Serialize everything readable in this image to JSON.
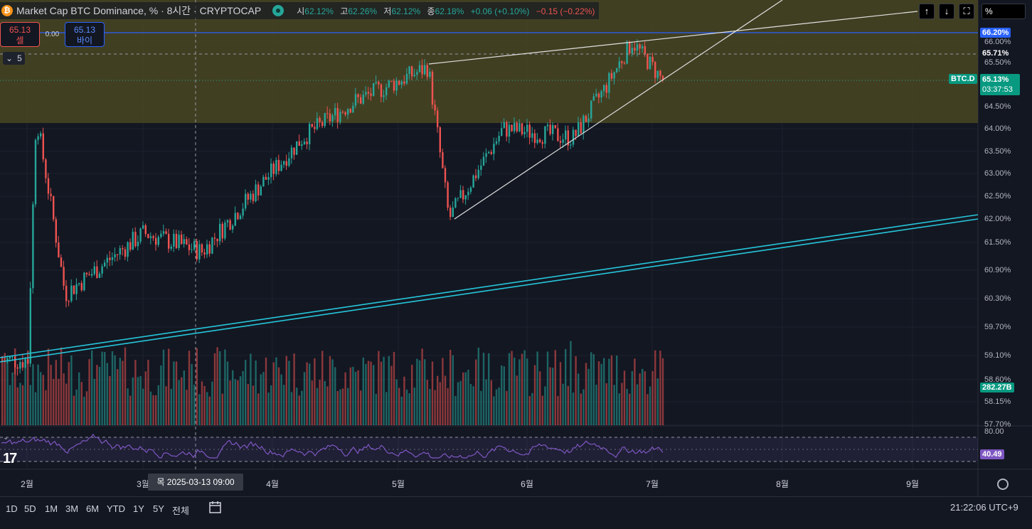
{
  "header": {
    "coin_icon": "bitcoin-icon",
    "coin_glyph": "₿",
    "title": "Market Cap BTC Dominance, % · 8시간 · CRYPTOCAP",
    "ohlc": {
      "o_label": "시",
      "o": "62.12%",
      "h_label": "고",
      "h": "62.26%",
      "l_label": "저",
      "l": "62.12%",
      "c_label": "종",
      "c": "62.18%",
      "change": "+0.06 (+0.10%)",
      "change2": "−0.15 (−0.22%)"
    }
  },
  "trade": {
    "sell_price": "65.13",
    "sell_label": "셀",
    "spread": "0.00",
    "buy_price": "65.13",
    "buy_label": "바이"
  },
  "collapse_count": "5",
  "toolbar": {
    "up": "↑",
    "down": "↓",
    "fullscreen": "⛶",
    "unit": "%"
  },
  "price_axis": {
    "ticks": [
      "66.00%",
      "65.50%",
      "64.50%",
      "64.00%",
      "63.50%",
      "63.00%",
      "62.50%",
      "62.00%",
      "61.50%",
      "60.90%",
      "60.30%",
      "59.70%",
      "59.10%",
      "58.60%",
      "58.15%",
      "57.70%"
    ],
    "labels": {
      "line_level": "66.20%",
      "dashed_level": "65.71%",
      "ticker": "BTC.D",
      "current": "65.13%",
      "countdown": "03:37:53",
      "volume": "282.27B",
      "rsi_top": "80.00",
      "rsi_value": "40.49"
    }
  },
  "time_axis": {
    "ticks": [
      "2월",
      "3월",
      "4월",
      "5월",
      "6월",
      "7월",
      "8월",
      "9월"
    ],
    "crosshair": "목 2025-03-13   09:00"
  },
  "bottom_bar": {
    "timeframes": [
      "1D",
      "5D",
      "1M",
      "3M",
      "6M",
      "YTD",
      "1Y",
      "5Y",
      "전체"
    ],
    "clock": "21:22:06 UTC+9"
  },
  "colors": {
    "background": "#131722",
    "up": "#26a69a",
    "down": "#ef5350",
    "zone": "#4a4622",
    "channel": "#26c6da",
    "hline": "#2962ff",
    "rsi": "#7e57c2"
  },
  "chart_data": {
    "type": "candlestick",
    "series": [
      {
        "name": "BTC.D",
        "unit": "%",
        "last": 65.13
      }
    ],
    "key_points": [
      {
        "date": "2025-02-01",
        "value": 59.0
      },
      {
        "date": "2025-02-03",
        "value": 64.3
      },
      {
        "date": "2025-02-10",
        "value": 60.4
      },
      {
        "date": "2025-03-01",
        "value": 61.7
      },
      {
        "date": "2025-03-15",
        "value": 61.3
      },
      {
        "date": "2025-04-08",
        "value": 63.8
      },
      {
        "date": "2025-04-20",
        "value": 64.6
      },
      {
        "date": "2025-05-08",
        "value": 65.4
      },
      {
        "date": "2025-05-13",
        "value": 62.0
      },
      {
        "date": "2025-05-26",
        "value": 64.0
      },
      {
        "date": "2025-06-12",
        "value": 63.8
      },
      {
        "date": "2025-06-20",
        "value": 65.0
      },
      {
        "date": "2025-06-26",
        "value": 66.0
      },
      {
        "date": "2025-07-03",
        "value": 65.13
      }
    ],
    "horizontal_lines": [
      66.2,
      65.71
    ],
    "zone": [
      64.0,
      66.6
    ],
    "indicators": [
      {
        "name": "Volume",
        "last": "282.27B"
      },
      {
        "name": "RSI",
        "upper": 80,
        "last": 40.49
      }
    ],
    "x_ticks": [
      "2월",
      "3월",
      "4월",
      "5월",
      "6월",
      "7월",
      "8월",
      "9월"
    ],
    "ylim": [
      57.7,
      66.6
    ],
    "grid": true,
    "xlabel": "",
    "ylabel": ""
  }
}
